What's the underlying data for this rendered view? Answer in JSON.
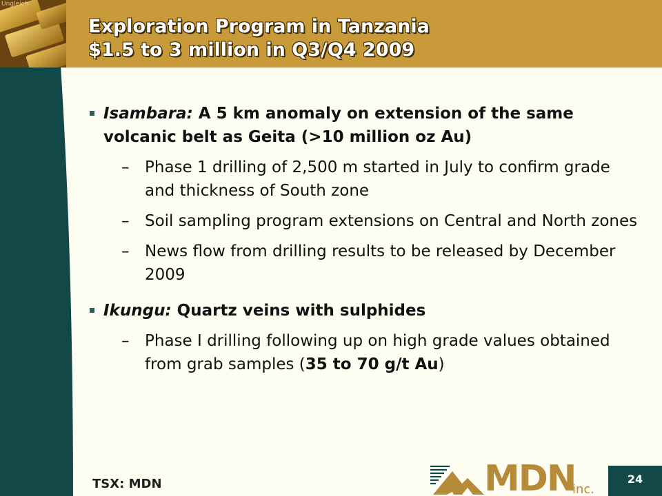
{
  "title": {
    "line1": "Exploration Program in Tanzania",
    "line2": "$1.5 to 3 million in Q3/Q4 2009"
  },
  "photo": {
    "watermark": "Ungleich"
  },
  "colors": {
    "header": "#c89a3a",
    "sidebar": "#124848",
    "background": "#fdfdf2",
    "logo": "#b58a38"
  },
  "content": {
    "isambara": {
      "term": "Isambara:",
      "text": " A 5 km anomaly on extension of the same volcanic belt as Geita (>10 million oz Au)",
      "subs": [
        "Phase 1 drilling of 2,500 m started in July to confirm grade and thickness of South zone",
        "Soil sampling program extensions on Central and North zones",
        "News flow from drilling results to be released by December 2009"
      ]
    },
    "ikungu": {
      "term": "Ikungu:",
      "text": " Quartz veins with sulphides",
      "sub_before": "Phase I drilling following up on high grade values obtained from grab samples (",
      "sub_bold": "35 to 70 g/t Au",
      "sub_after": ")"
    }
  },
  "footer": {
    "ticker": "TSX: MDN",
    "logo_text": "MDN",
    "logo_inc": "inc.",
    "page_number": "24"
  }
}
